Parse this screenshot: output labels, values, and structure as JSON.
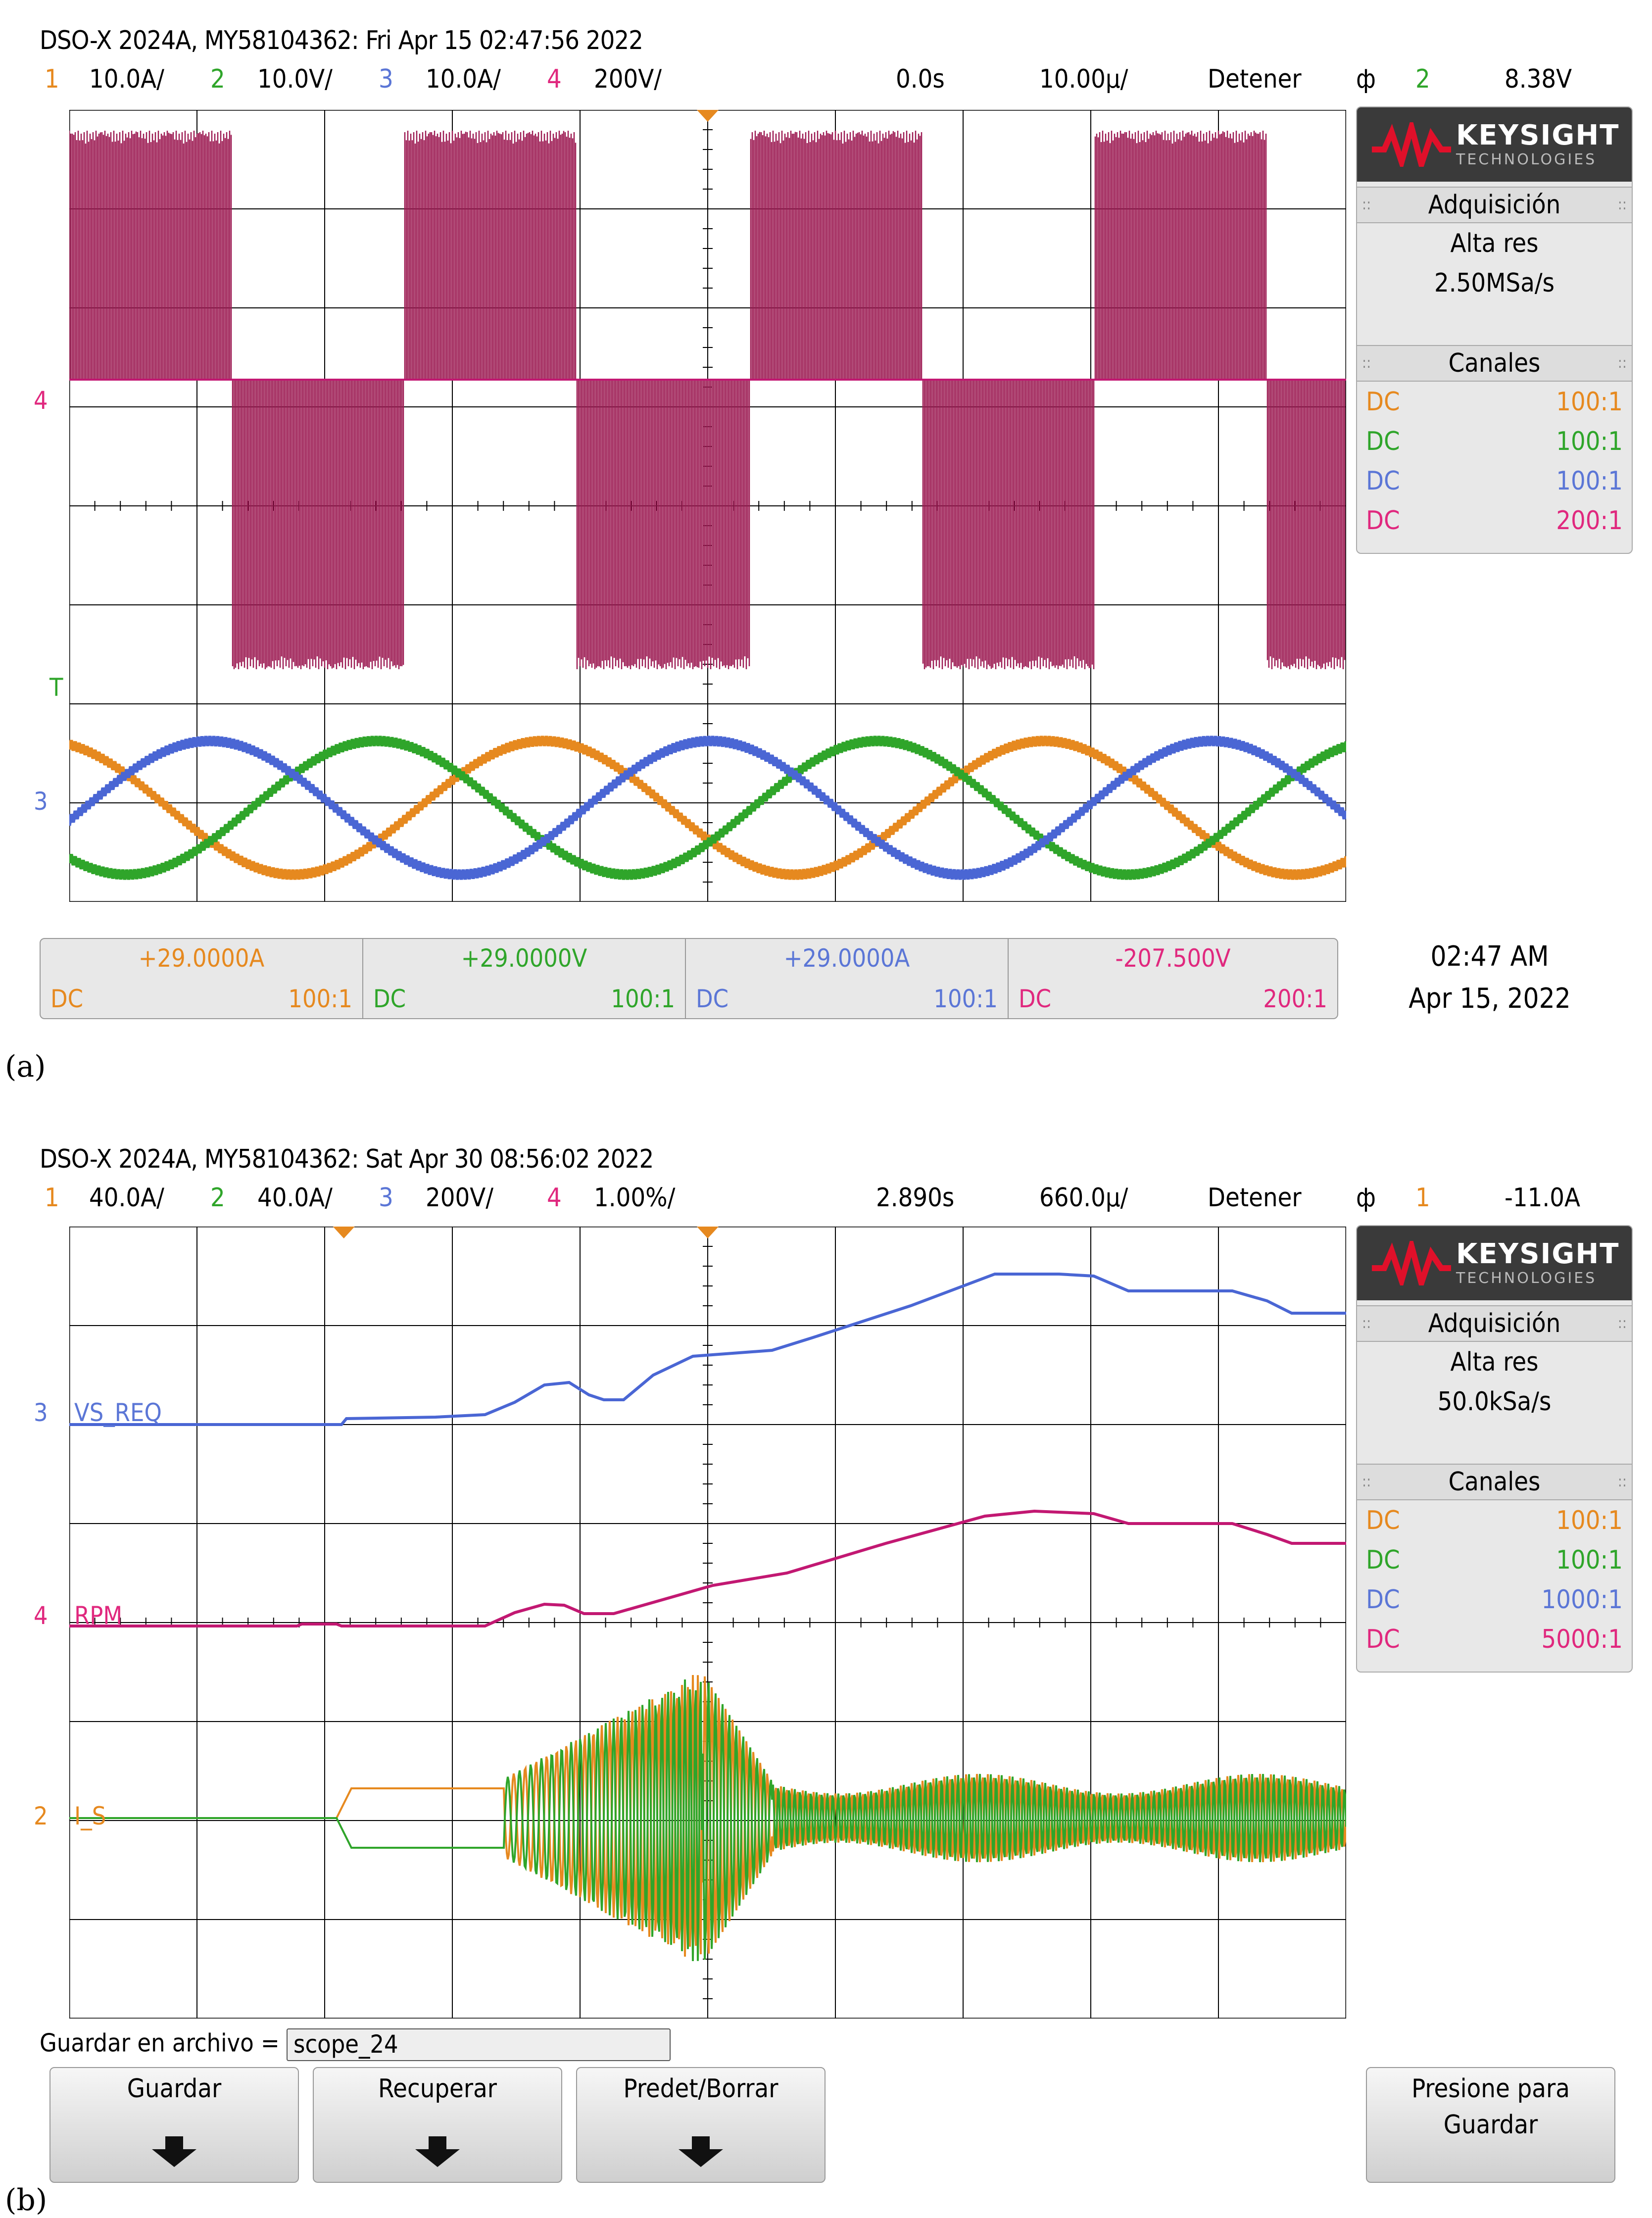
{
  "panel_a": {
    "caption_label": "(a)",
    "title": "DSO-X 2024A, MY58104362: Fri Apr 15 02:47:56 2022",
    "channels": [
      {
        "num": "1",
        "scale": "10.0A/"
      },
      {
        "num": "2",
        "scale": "10.0V/"
      },
      {
        "num": "3",
        "scale": "10.0A/"
      },
      {
        "num": "4",
        "scale": "200V/"
      }
    ],
    "time_offset": "0.0s",
    "time_scale": "10.00µ/",
    "run_state": "Detener",
    "trigger_icon": "ф",
    "trigger_channel": "2",
    "trigger_level": "8.38V",
    "side": {
      "brand": "KEYSIGHT",
      "brand_sub": "TECHNOLOGIES",
      "acq_title": "Adquisición",
      "acq_mode": "Alta res",
      "acq_rate": "2.50MSa/s",
      "ch_title": "Canales",
      "rows": [
        {
          "coupling": "DC",
          "ratio": "100:1"
        },
        {
          "coupling": "DC",
          "ratio": "100:1"
        },
        {
          "coupling": "DC",
          "ratio": "100:1"
        },
        {
          "coupling": "DC",
          "ratio": "200:1"
        }
      ]
    },
    "measurements": [
      {
        "value": "+29.0000A",
        "coupling": "DC",
        "ratio": "100:1"
      },
      {
        "value": "+29.0000V",
        "coupling": "DC",
        "ratio": "100:1"
      },
      {
        "value": "+29.0000A",
        "coupling": "DC",
        "ratio": "100:1"
      },
      {
        "value": "-207.500V",
        "coupling": "DC",
        "ratio": "200:1"
      }
    ],
    "time": "02:47 AM",
    "date": "Apr 15, 2022",
    "markers": {
      "ch4": "4",
      "trig": "T",
      "ch3": "3"
    }
  },
  "panel_b": {
    "caption_label": "(b)",
    "title": "DSO-X 2024A, MY58104362: Sat Apr 30 08:56:02 2022",
    "channels": [
      {
        "num": "1",
        "scale": "40.0A/"
      },
      {
        "num": "2",
        "scale": "40.0A/"
      },
      {
        "num": "3",
        "scale": "200V/"
      },
      {
        "num": "4",
        "scale": "1.00%/"
      }
    ],
    "time_offset": "2.890s",
    "time_scale": "660.0µ/",
    "run_state": "Detener",
    "trigger_icon": "ф",
    "trigger_channel": "1",
    "trigger_level": "-11.0A",
    "side": {
      "brand": "KEYSIGHT",
      "brand_sub": "TECHNOLOGIES",
      "acq_title": "Adquisición",
      "acq_mode": "Alta res",
      "acq_rate": "50.0kSa/s",
      "ch_title": "Canales",
      "rows": [
        {
          "coupling": "DC",
          "ratio": "100:1"
        },
        {
          "coupling": "DC",
          "ratio": "100:1"
        },
        {
          "coupling": "DC",
          "ratio": "1000:1"
        },
        {
          "coupling": "DC",
          "ratio": "5000:1"
        }
      ]
    },
    "trace_labels": {
      "vs": "VS_REQ",
      "rpm": "RPM",
      "is": "I_S"
    },
    "markers": {
      "ch3": "3",
      "ch4": "4",
      "ch2": "2"
    },
    "save_label": "Guardar en archivo =",
    "save_value": "scope_24",
    "buttons": {
      "save": "Guardar",
      "recall": "Recuperar",
      "default": "Predet/Borrar",
      "press1": "Presione para",
      "press2": "Guardar"
    }
  },
  "colors": {
    "ch1": "#e6891f",
    "ch2": "#2fa52a",
    "ch3": "#4a66d4",
    "ch4": "#c21872",
    "ch4_fill": "#9c1a52"
  }
}
